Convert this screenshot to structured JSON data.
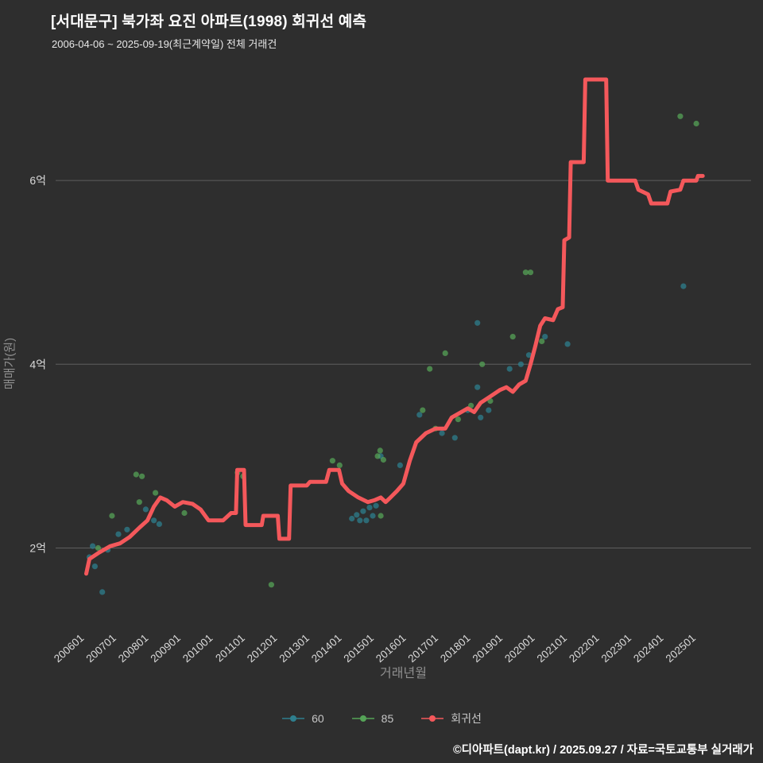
{
  "title": "[서대문구] 북가좌 요진 아파트(1998) 회귀선 예측",
  "subtitle": "2006-04-06 ~ 2025-09-19(최근계약일) 전체 거래건",
  "footer": "©디아파트(dapt.kr) / 2025.09.27 / 자료=국토교통부 실거래가",
  "colors": {
    "background": "#2e2e2e",
    "grid": "#5f5f5f",
    "tick": "#d9d9d9",
    "axis_title": "#8f8f8f",
    "series60": "#2e7f8e",
    "series85": "#55a357",
    "regression": "#f4585b"
  },
  "chart_data": {
    "type": "scatter",
    "title": "[서대문구] 북가좌 요진 아파트(1998) 회귀선 예측",
    "xlabel": "거래년월",
    "ylabel": "매매가(원)",
    "unit": "억원",
    "grid": "horizontal-only",
    "legend_position": "bottom-center",
    "x_domain": [
      2005.1,
      2026.7
    ],
    "y_domain": [
      1.13,
      7.23
    ],
    "x_ticks": [
      "200601",
      "200701",
      "200801",
      "200901",
      "201001",
      "201101",
      "201201",
      "201301",
      "201401",
      "201501",
      "201601",
      "201701",
      "201801",
      "201901",
      "202001",
      "202101",
      "202201",
      "202301",
      "202401",
      "202501"
    ],
    "y_ticks": [
      {
        "label": "2억",
        "value": 2
      },
      {
        "label": "4억",
        "value": 4
      },
      {
        "label": "6억",
        "value": 6
      }
    ],
    "legend": [
      {
        "key": "series-60",
        "label": "60",
        "color_key": "series60"
      },
      {
        "key": "series-85",
        "label": "85",
        "color_key": "series85"
      },
      {
        "key": "regression-line",
        "label": "회귀선",
        "color_key": "regression"
      }
    ],
    "series": [
      {
        "name": "60",
        "type": "scatter",
        "color_key": "series60",
        "points": [
          [
            2006.15,
            1.9
          ],
          [
            2006.25,
            2.02
          ],
          [
            2006.32,
            1.8
          ],
          [
            2006.55,
            1.52
          ],
          [
            2006.72,
            1.98
          ],
          [
            2007.05,
            2.15
          ],
          [
            2007.32,
            2.2
          ],
          [
            2007.9,
            2.42
          ],
          [
            2008.15,
            2.3
          ],
          [
            2008.32,
            2.26
          ],
          [
            2014.3,
            2.32
          ],
          [
            2014.45,
            2.36
          ],
          [
            2014.55,
            2.3
          ],
          [
            2014.65,
            2.4
          ],
          [
            2014.75,
            2.3
          ],
          [
            2014.85,
            2.44
          ],
          [
            2014.95,
            2.35
          ],
          [
            2015.05,
            2.46
          ],
          [
            2015.2,
            3.0
          ],
          [
            2015.8,
            2.9
          ],
          [
            2016.4,
            3.45
          ],
          [
            2017.1,
            3.25
          ],
          [
            2017.5,
            3.2
          ],
          [
            2017.9,
            3.5
          ],
          [
            2018.2,
            3.75
          ],
          [
            2018.3,
            3.42
          ],
          [
            2018.55,
            3.5
          ],
          [
            2018.2,
            4.45
          ],
          [
            2019.2,
            3.95
          ],
          [
            2019.55,
            4.0
          ],
          [
            2019.8,
            4.1
          ],
          [
            2020.3,
            4.3
          ],
          [
            2021.0,
            4.22
          ],
          [
            2024.6,
            4.85
          ]
        ]
      },
      {
        "name": "85",
        "type": "scatter",
        "color_key": "series85",
        "points": [
          [
            2006.42,
            2.0
          ],
          [
            2006.85,
            2.35
          ],
          [
            2007.6,
            2.8
          ],
          [
            2007.78,
            2.78
          ],
          [
            2007.7,
            2.5
          ],
          [
            2008.2,
            2.6
          ],
          [
            2009.1,
            2.38
          ],
          [
            2010.75,
            2.82
          ],
          [
            2010.92,
            2.78
          ],
          [
            2011.8,
            1.6
          ],
          [
            2013.7,
            2.95
          ],
          [
            2013.92,
            2.9
          ],
          [
            2015.1,
            3.0
          ],
          [
            2015.18,
            3.06
          ],
          [
            2015.28,
            2.96
          ],
          [
            2015.2,
            2.35
          ],
          [
            2016.5,
            3.5
          ],
          [
            2016.72,
            3.95
          ],
          [
            2016.9,
            3.3
          ],
          [
            2017.2,
            4.12
          ],
          [
            2017.6,
            3.4
          ],
          [
            2018.0,
            3.55
          ],
          [
            2018.35,
            4.0
          ],
          [
            2018.6,
            3.6
          ],
          [
            2019.3,
            4.3
          ],
          [
            2019.7,
            5.0
          ],
          [
            2019.85,
            5.0
          ],
          [
            2020.2,
            4.25
          ],
          [
            2024.5,
            6.7
          ],
          [
            2025.0,
            6.62
          ]
        ]
      },
      {
        "name": "회귀선",
        "type": "line",
        "color_key": "regression",
        "points": [
          [
            2006.05,
            1.72
          ],
          [
            2006.15,
            1.88
          ],
          [
            2006.45,
            1.95
          ],
          [
            2006.8,
            2.02
          ],
          [
            2007.1,
            2.05
          ],
          [
            2007.4,
            2.12
          ],
          [
            2007.7,
            2.22
          ],
          [
            2007.95,
            2.3
          ],
          [
            2008.15,
            2.45
          ],
          [
            2008.35,
            2.55
          ],
          [
            2008.55,
            2.52
          ],
          [
            2008.8,
            2.45
          ],
          [
            2009.05,
            2.5
          ],
          [
            2009.35,
            2.48
          ],
          [
            2009.6,
            2.42
          ],
          [
            2009.85,
            2.3
          ],
          [
            2010.3,
            2.3
          ],
          [
            2010.55,
            2.38
          ],
          [
            2010.7,
            2.38
          ],
          [
            2010.74,
            2.85
          ],
          [
            2010.95,
            2.85
          ],
          [
            2011.0,
            2.25
          ],
          [
            2011.5,
            2.25
          ],
          [
            2011.55,
            2.35
          ],
          [
            2012.0,
            2.35
          ],
          [
            2012.05,
            2.1
          ],
          [
            2012.35,
            2.1
          ],
          [
            2012.4,
            2.68
          ],
          [
            2012.9,
            2.68
          ],
          [
            2013.0,
            2.72
          ],
          [
            2013.5,
            2.72
          ],
          [
            2013.6,
            2.85
          ],
          [
            2013.9,
            2.85
          ],
          [
            2014.0,
            2.7
          ],
          [
            2014.2,
            2.62
          ],
          [
            2014.5,
            2.55
          ],
          [
            2014.8,
            2.5
          ],
          [
            2015.0,
            2.52
          ],
          [
            2015.2,
            2.55
          ],
          [
            2015.35,
            2.5
          ],
          [
            2015.5,
            2.55
          ],
          [
            2015.7,
            2.62
          ],
          [
            2015.9,
            2.7
          ],
          [
            2016.1,
            2.95
          ],
          [
            2016.3,
            3.15
          ],
          [
            2016.6,
            3.25
          ],
          [
            2016.9,
            3.3
          ],
          [
            2017.2,
            3.3
          ],
          [
            2017.4,
            3.42
          ],
          [
            2017.7,
            3.48
          ],
          [
            2017.9,
            3.52
          ],
          [
            2018.1,
            3.48
          ],
          [
            2018.3,
            3.58
          ],
          [
            2018.6,
            3.65
          ],
          [
            2018.9,
            3.72
          ],
          [
            2019.1,
            3.75
          ],
          [
            2019.3,
            3.7
          ],
          [
            2019.5,
            3.78
          ],
          [
            2019.7,
            3.82
          ],
          [
            2019.85,
            4.0
          ],
          [
            2020.0,
            4.2
          ],
          [
            2020.15,
            4.42
          ],
          [
            2020.3,
            4.5
          ],
          [
            2020.55,
            4.48
          ],
          [
            2020.7,
            4.6
          ],
          [
            2020.85,
            4.62
          ],
          [
            2020.9,
            5.35
          ],
          [
            2021.05,
            5.38
          ],
          [
            2021.1,
            6.2
          ],
          [
            2021.5,
            6.2
          ],
          [
            2021.55,
            7.1
          ],
          [
            2022.2,
            7.1
          ],
          [
            2022.25,
            6.0
          ],
          [
            2023.1,
            6.0
          ],
          [
            2023.2,
            5.9
          ],
          [
            2023.5,
            5.85
          ],
          [
            2023.6,
            5.75
          ],
          [
            2024.1,
            5.75
          ],
          [
            2024.2,
            5.88
          ],
          [
            2024.5,
            5.9
          ],
          [
            2024.6,
            6.0
          ],
          [
            2025.0,
            6.0
          ],
          [
            2025.05,
            6.05
          ],
          [
            2025.2,
            6.05
          ]
        ]
      }
    ]
  }
}
